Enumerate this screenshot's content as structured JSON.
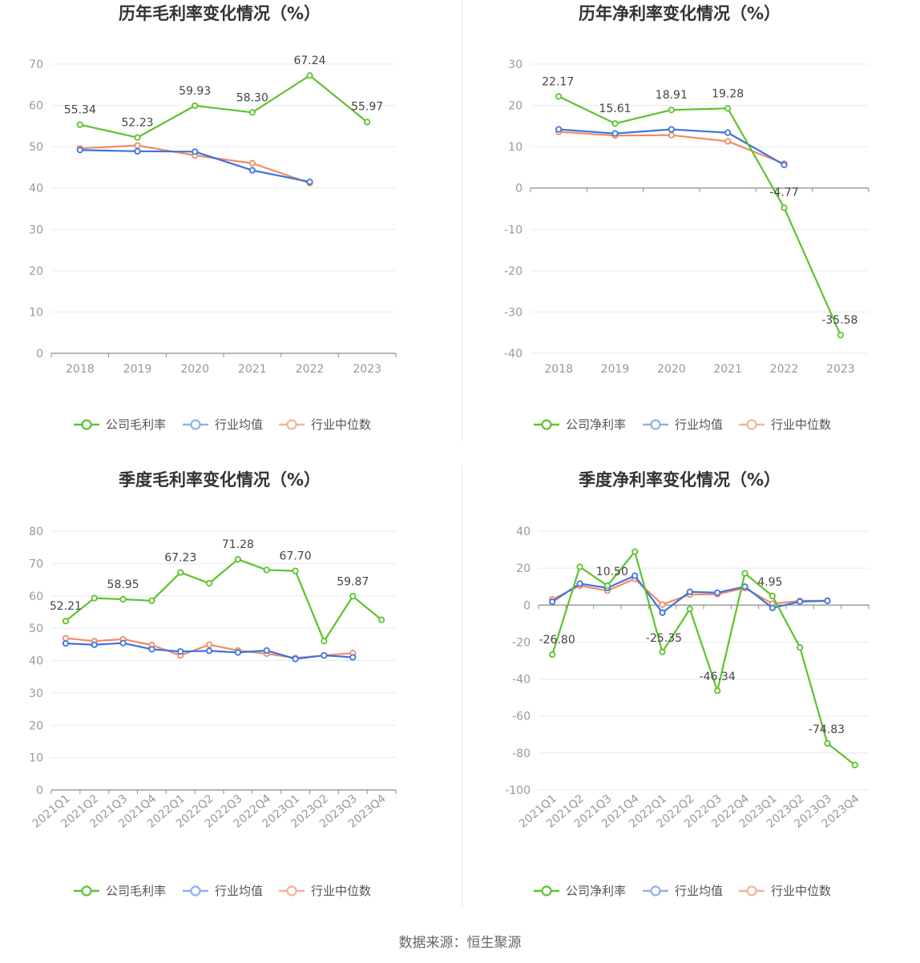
{
  "source": "数据来源：恒生聚源",
  "colors": {
    "company": "#5ec22e",
    "avg": "#3e73e0",
    "median": "#f28c63",
    "avg_legend": "#8fb0ee",
    "median_legend": "#f5b39a"
  },
  "chart_data": [
    {
      "type": "line",
      "title": "历年毛利率变化情况（%）",
      "categories": [
        "2018",
        "2019",
        "2020",
        "2021",
        "2022",
        "2023"
      ],
      "ylim": [
        0,
        70
      ],
      "yticks": [
        0,
        10,
        20,
        30,
        40,
        50,
        60,
        70
      ],
      "grid": true,
      "legend": "bottom",
      "series": [
        {
          "name": "公司毛利率",
          "role": "company",
          "values": [
            55.34,
            52.23,
            59.93,
            58.3,
            67.24,
            55.97
          ],
          "labels": [
            "55.34",
            "52.23",
            "59.93",
            "58.30",
            "67.24",
            "55.97"
          ]
        },
        {
          "name": "行业均值",
          "role": "avg",
          "values": [
            49.2,
            48.9,
            48.8,
            44.3,
            41.5,
            null
          ]
        },
        {
          "name": "行业中位数",
          "role": "median",
          "values": [
            49.6,
            50.3,
            47.9,
            46.0,
            41.2,
            null
          ]
        }
      ]
    },
    {
      "type": "line",
      "title": "历年净利率变化情况（%）",
      "categories": [
        "2018",
        "2019",
        "2020",
        "2021",
        "2022",
        "2023"
      ],
      "ylim": [
        -40,
        30
      ],
      "yticks": [
        -40,
        -30,
        -20,
        -10,
        0,
        10,
        20,
        30
      ],
      "grid": true,
      "legend": "bottom",
      "series": [
        {
          "name": "公司净利率",
          "role": "company",
          "values": [
            22.17,
            15.61,
            18.91,
            19.28,
            -4.77,
            -35.58
          ],
          "labels": [
            "22.17",
            "15.61",
            "18.91",
            "19.28",
            "-4.77",
            "-35.58"
          ]
        },
        {
          "name": "行业均值",
          "role": "avg",
          "values": [
            14.2,
            13.2,
            14.2,
            13.4,
            5.6,
            null
          ]
        },
        {
          "name": "行业中位数",
          "role": "median",
          "values": [
            13.6,
            12.7,
            12.8,
            11.3,
            5.9,
            null
          ]
        }
      ]
    },
    {
      "type": "line",
      "title": "季度毛利率变化情况（%）",
      "categories": [
        "2021Q1",
        "2021Q2",
        "2021Q3",
        "2021Q4",
        "2022Q1",
        "2022Q2",
        "2022Q3",
        "2022Q4",
        "2023Q1",
        "2023Q2",
        "2023Q3",
        "2023Q4"
      ],
      "ylim": [
        0,
        80
      ],
      "yticks": [
        0,
        10,
        20,
        30,
        40,
        50,
        60,
        70,
        80
      ],
      "grid": true,
      "legend": "bottom",
      "series": [
        {
          "name": "公司毛利率",
          "role": "company",
          "values": [
            52.21,
            59.3,
            58.95,
            58.5,
            67.23,
            63.9,
            71.28,
            68.0,
            67.7,
            46.0,
            59.87,
            52.6
          ],
          "labels": [
            "52.21",
            "",
            "58.95",
            "",
            "67.23",
            "",
            "71.28",
            "",
            "67.70",
            "",
            "59.87",
            ""
          ]
        },
        {
          "name": "行业均值",
          "role": "avg",
          "values": [
            45.3,
            44.9,
            45.4,
            43.5,
            42.8,
            43.0,
            42.5,
            43.1,
            40.5,
            41.6,
            41.0,
            null
          ]
        },
        {
          "name": "行业中位数",
          "role": "median",
          "values": [
            46.9,
            46.0,
            46.6,
            44.8,
            41.6,
            44.9,
            43.1,
            42.1,
            40.8,
            41.6,
            42.3,
            null
          ]
        }
      ]
    },
    {
      "type": "line",
      "title": "季度净利率变化情况（%）",
      "categories": [
        "2021Q1",
        "2021Q2",
        "2021Q3",
        "2021Q4",
        "2022Q1",
        "2022Q2",
        "2022Q3",
        "2022Q4",
        "2023Q1",
        "2023Q2",
        "2023Q3",
        "2023Q4"
      ],
      "ylim": [
        -100,
        40
      ],
      "yticks": [
        -100,
        -80,
        -60,
        -40,
        -20,
        0,
        20,
        40
      ],
      "grid": true,
      "legend": "bottom",
      "series": [
        {
          "name": "公司净利率",
          "role": "company",
          "values": [
            -26.8,
            20.7,
            10.5,
            28.9,
            -25.35,
            -2.1,
            -46.34,
            17.2,
            4.95,
            -22.9,
            -74.83,
            -86.5
          ],
          "labels": [
            "-26.80",
            "",
            "10.50",
            "",
            "-25.35",
            "",
            "-46.34",
            "",
            "4.95",
            "",
            "-74.83",
            ""
          ]
        },
        {
          "name": "行业均值",
          "role": "avg",
          "values": [
            1.8,
            11.6,
            9.3,
            15.9,
            -4.1,
            7.2,
            6.7,
            10.0,
            -1.5,
            1.9,
            2.3,
            null
          ]
        },
        {
          "name": "行业中位数",
          "role": "median",
          "values": [
            3.1,
            10.5,
            7.8,
            14.2,
            0.3,
            5.7,
            5.9,
            9.2,
            0.8,
            2.3,
            2.4,
            null
          ]
        }
      ]
    }
  ]
}
